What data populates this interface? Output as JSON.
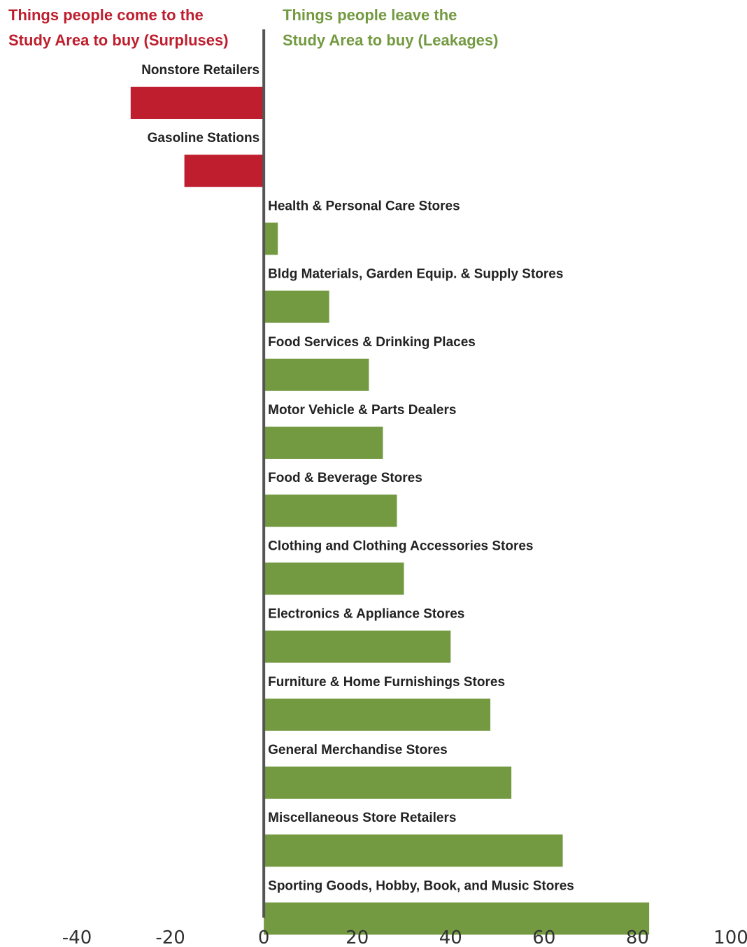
{
  "headers": {
    "left": {
      "line1": "Things people come to the",
      "line2": "Study Area to buy (Surpluses)"
    },
    "right": {
      "line1": "Things people leave the",
      "line2": "Study Area to buy (Leakages)"
    }
  },
  "colors": {
    "surplus": "#be1e2d",
    "leakage": "#739a41",
    "axis": "#555555"
  },
  "chart_data": {
    "type": "bar",
    "orientation": "horizontal",
    "categories": [
      "Nonstore Retailers",
      "Gasoline Stations",
      "Health & Personal Care Stores",
      "Bldg Materials, Garden Equip. & Supply Stores",
      "Food Services & Drinking Places",
      "Motor Vehicle & Parts Dealers",
      "Food & Beverage Stores",
      "Clothing and Clothing Accessories Stores",
      "Electronics & Appliance Stores",
      "Furniture & Home Furnishings Stores",
      "General Merchandise Stores",
      "Miscellaneous Store Retailers",
      "Sporting Goods, Hobby, Book, and Music Stores"
    ],
    "values": [
      -28.5,
      -17,
      3,
      14,
      22.5,
      25.5,
      28.5,
      30,
      40,
      48.5,
      53,
      64,
      82.5
    ],
    "xlim": [
      -40,
      100
    ],
    "xticks": [
      "-40",
      "-20",
      "0",
      "20",
      "40",
      "60",
      "80",
      "100"
    ],
    "grid": false,
    "legend": "none"
  }
}
